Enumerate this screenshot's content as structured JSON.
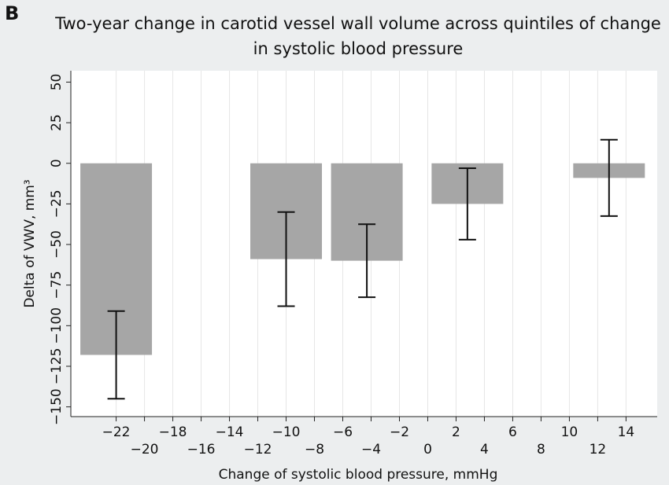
{
  "panel_label": "B",
  "chart_data": {
    "type": "bar",
    "title": [
      "Two-year change in carotid vessel wall volume across quintiles of change",
      "in systolic blood pressure"
    ],
    "x_label": "Change of systolic blood pressure, mmHg",
    "y_label": "Delta of VWV, mm³",
    "x": [
      -22,
      -10,
      -4.3,
      2.8,
      12.8
    ],
    "values": [
      -118,
      -59,
      -60,
      -25,
      -9
    ],
    "errors": [
      27,
      29,
      22.5,
      22,
      23.5
    ],
    "color": "#a6a6a6",
    "xlim": [
      -25.2,
      16.2
    ],
    "ylim": [
      -156,
      57
    ],
    "xticks": [
      {
        "value": -22,
        "label": "−22"
      },
      {
        "value": -20,
        "label": "−20"
      },
      {
        "value": -18,
        "label": "−18"
      },
      {
        "value": -16,
        "label": "−16"
      },
      {
        "value": -14,
        "label": "−14"
      },
      {
        "value": -12,
        "label": "−12"
      },
      {
        "value": -10,
        "label": "−10"
      },
      {
        "value": -8,
        "label": "−8"
      },
      {
        "value": -6,
        "label": "−6"
      },
      {
        "value": -4,
        "label": "−4"
      },
      {
        "value": -2,
        "label": "−2"
      },
      0,
      2,
      4,
      6,
      8,
      10,
      12,
      14
    ],
    "yticks": [
      {
        "value": -150,
        "label": "−150"
      },
      {
        "value": -125,
        "label": "−125"
      },
      {
        "value": -100,
        "label": "−100"
      },
      {
        "value": -75,
        "label": "−75"
      },
      {
        "value": -50,
        "label": "−50"
      },
      {
        "value": -25,
        "label": "−25"
      },
      0,
      25,
      50
    ],
    "grid": true
  }
}
